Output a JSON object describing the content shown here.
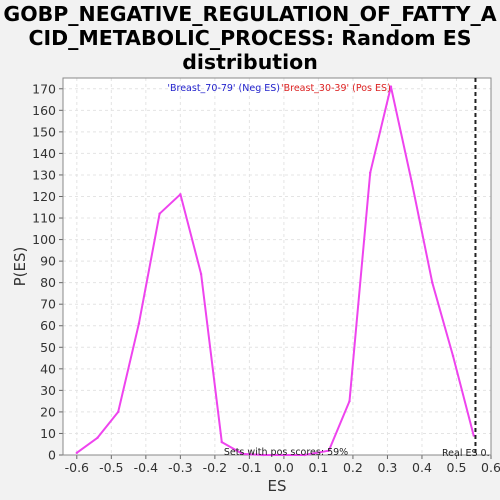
{
  "colors": {
    "background": "#f2f2f2",
    "plot_background": "#ffffff",
    "grid": "#e4e4e4",
    "line": "#ee44ee",
    "neg_legend": "#2222cc",
    "pos_legend": "#dd2222",
    "real_es_line": "#222222"
  },
  "chart_data": {
    "type": "line",
    "title": "GOBP_NEGATIVE_REGULATION_OF_FATTY_ACID_METABOLIC_PROCESS: Random ES distribution",
    "title_lines": [
      "GOBP_NEGATIVE_REGULATION_OF_FATTY_A",
      "CID_METABOLIC_PROCESS: Random ES",
      "distribution"
    ],
    "xlabel": "ES",
    "ylabel": "P(ES)",
    "xlim": [
      -0.64,
      0.6
    ],
    "ylim": [
      0,
      175
    ],
    "xticks": [
      -0.6,
      -0.5,
      -0.4,
      -0.3,
      -0.2,
      -0.1,
      0.0,
      0.1,
      0.2,
      0.3,
      0.4,
      0.5,
      0.6
    ],
    "xtick_labels": [
      "-0.6",
      "-0.5",
      "-0.4",
      "-0.3",
      "-0.2",
      "-0.1",
      "0.0",
      "0.1",
      "0.2",
      "0.3",
      "0.4",
      "0.5",
      "0.6"
    ],
    "yticks": [
      0,
      10,
      20,
      30,
      40,
      50,
      60,
      70,
      80,
      90,
      100,
      110,
      120,
      130,
      140,
      150,
      160,
      170
    ],
    "ytick_labels": [
      "0",
      "10",
      "20",
      "30",
      "40",
      "50",
      "60",
      "70",
      "80",
      "90",
      "100",
      "110",
      "120",
      "130",
      "140",
      "150",
      "160",
      "170"
    ],
    "grid": true,
    "series": [
      {
        "x": [
          -0.6,
          -0.54,
          -0.48,
          -0.42,
          -0.36,
          -0.3,
          -0.24,
          -0.18,
          -0.12,
          -0.06,
          0.0,
          0.06,
          0.13,
          0.19,
          0.25,
          0.31,
          0.37,
          0.43,
          0.49,
          0.55
        ],
        "y": [
          1,
          8,
          20,
          61,
          112,
          121,
          84,
          6,
          0.5,
          0,
          0,
          0,
          2,
          25,
          131,
          171,
          127,
          80,
          46,
          9
        ]
      }
    ],
    "legend": {
      "placement": "top-center",
      "neg_label": "'Breast_70-79' (Neg ES)",
      "pos_label": "'Breast_30-39' (Pos ES)"
    },
    "annotations": {
      "pos_scores": "Sets with pos scores: 59%",
      "real_es_label": "Real ES 0.",
      "real_es_value": 0.555
    }
  }
}
